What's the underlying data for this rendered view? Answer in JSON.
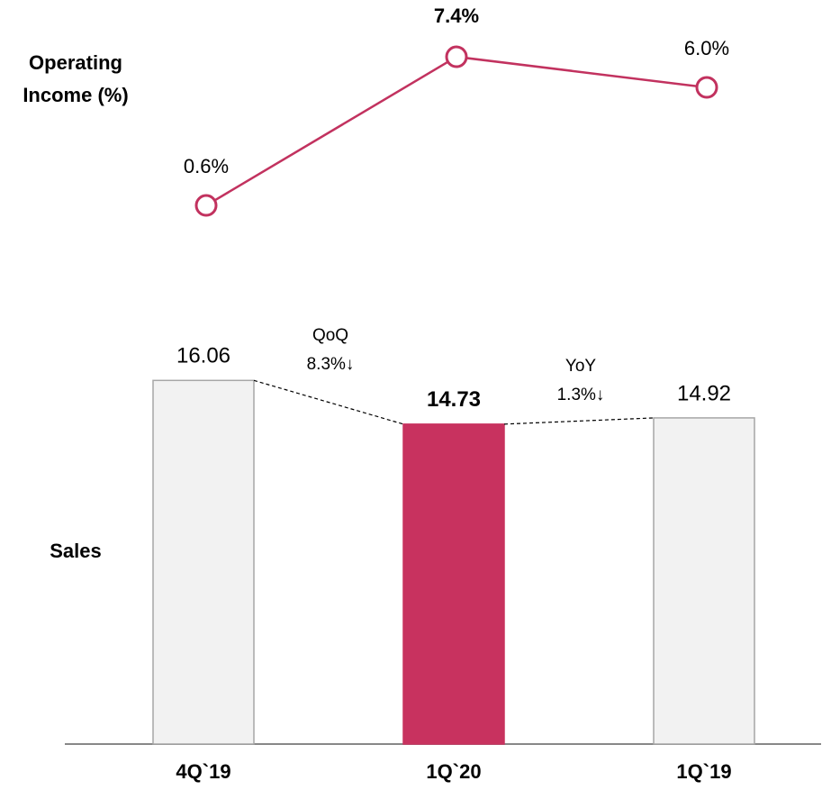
{
  "chart_data": [
    {
      "type": "line",
      "y_label": "Operating Income (%)",
      "values": [
        0.6,
        7.4,
        6.0
      ],
      "value_labels": [
        "0.6%",
        "7.4%",
        "6.0%"
      ],
      "color": "#c2325f",
      "ylim": [
        0,
        8
      ]
    },
    {
      "type": "bar",
      "y_label": "Sales",
      "categories": [
        "4Q`19",
        "1Q`20",
        "1Q`19"
      ],
      "values": [
        16.06,
        14.73,
        14.92
      ],
      "colors": [
        "#f2f2f2",
        "#c8325f",
        "#f2f2f2"
      ],
      "ylim": [
        5,
        17
      ],
      "annotations": [
        {
          "title": "QoQ",
          "text": "8.3%↓"
        },
        {
          "title": "YoY",
          "text": "1.3%↓"
        }
      ]
    }
  ]
}
